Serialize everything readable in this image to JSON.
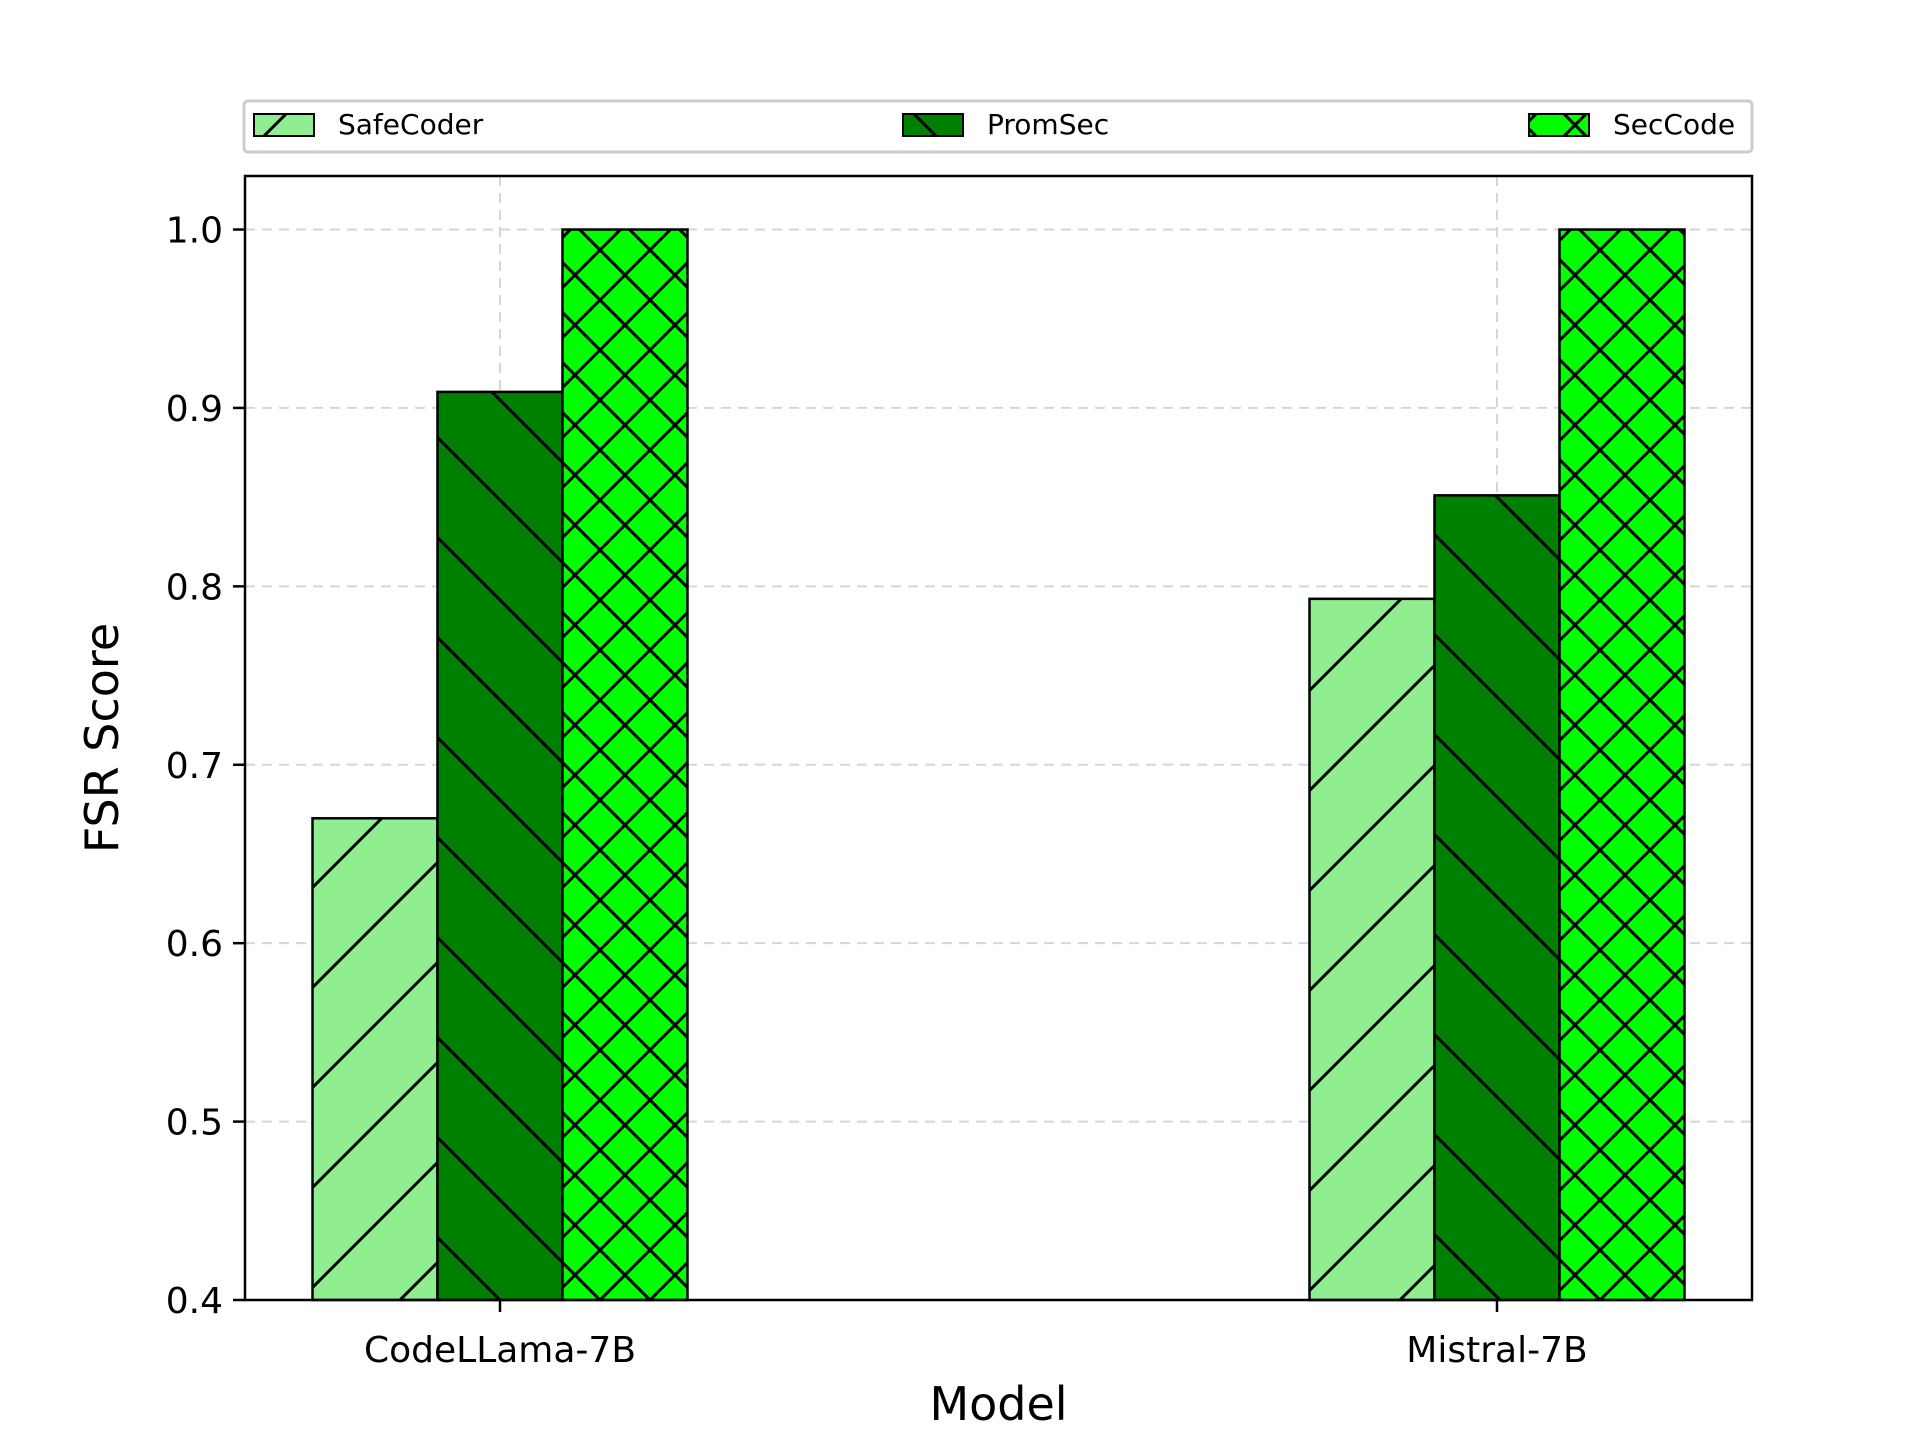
{
  "chart_data": {
    "type": "bar",
    "title": "",
    "xlabel": "Model",
    "ylabel": "FSR Score",
    "categories": [
      "CodeLLama-7B",
      "Mistral-7B"
    ],
    "series": [
      {
        "name": "SafeCoder",
        "values": [
          0.67,
          0.793
        ],
        "color": "#90ee90",
        "hatch": "diagonal-forward"
      },
      {
        "name": "PromSec",
        "values": [
          0.909,
          0.851
        ],
        "color": "#008000",
        "hatch": "diagonal-back"
      },
      {
        "name": "SecCode",
        "values": [
          1.0,
          1.0
        ],
        "color": "#00ff00",
        "hatch": "cross"
      }
    ],
    "ylim": [
      0.4,
      1.03
    ],
    "yticks": [
      "0.4",
      "0.5",
      "0.6",
      "0.7",
      "0.8",
      "0.9",
      "1.0"
    ],
    "grid": true,
    "legend_position": "top, outside plot, spread across width"
  }
}
